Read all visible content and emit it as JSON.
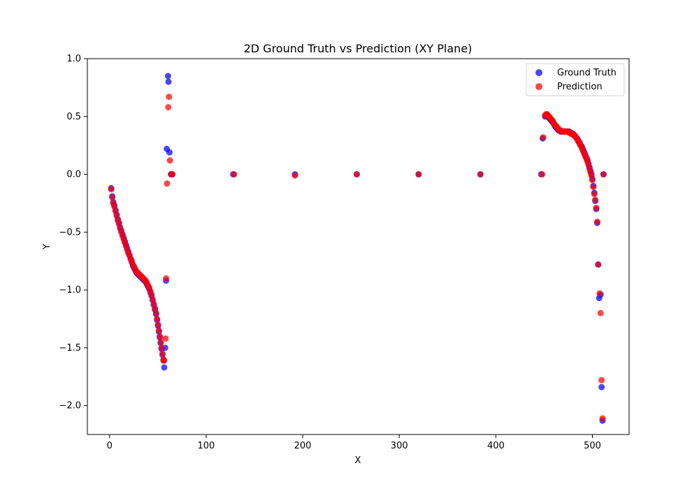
{
  "chart_data": {
    "type": "scatter",
    "title": "2D Ground Truth vs Prediction (XY Plane)",
    "xlabel": "X",
    "ylabel": "Y",
    "xlim": [
      -23,
      538
    ],
    "ylim": [
      -2.25,
      1.0
    ],
    "x_ticks": [
      0,
      100,
      200,
      300,
      400,
      500
    ],
    "y_ticks": [
      1.0,
      0.5,
      0.0,
      -0.5,
      -1.0,
      -1.5,
      -2.0
    ],
    "x_tick_labels": [
      "0",
      "100",
      "200",
      "300",
      "400",
      "500"
    ],
    "y_tick_labels": [
      "1.0",
      "0.5",
      "0.0",
      "−0.5",
      "−1.0",
      "−1.5",
      "−2.0"
    ],
    "grid": false,
    "legend_position": "upper right",
    "series": [
      {
        "name": "Ground Truth",
        "color": "#0000ff",
        "points": [
          [
            1.7,
            -0.12
          ],
          [
            2.8,
            -0.19
          ],
          [
            3.8,
            -0.24
          ],
          [
            5.0,
            -0.27
          ],
          [
            6.2,
            -0.31
          ],
          [
            7.4,
            -0.35
          ],
          [
            8.6,
            -0.39
          ],
          [
            9.8,
            -0.42
          ],
          [
            11.0,
            -0.46
          ],
          [
            12.2,
            -0.49
          ],
          [
            13.4,
            -0.52
          ],
          [
            14.6,
            -0.55
          ],
          [
            15.8,
            -0.58
          ],
          [
            17.0,
            -0.61
          ],
          [
            18.2,
            -0.64
          ],
          [
            19.4,
            -0.67
          ],
          [
            20.6,
            -0.7
          ],
          [
            21.8,
            -0.73
          ],
          [
            23.0,
            -0.76
          ],
          [
            24.2,
            -0.79
          ],
          [
            25.4,
            -0.81
          ],
          [
            26.6,
            -0.83
          ],
          [
            27.8,
            -0.85
          ],
          [
            29.0,
            -0.86
          ],
          [
            30.2,
            -0.87
          ],
          [
            31.4,
            -0.88
          ],
          [
            32.6,
            -0.89
          ],
          [
            33.8,
            -0.9
          ],
          [
            35.0,
            -0.91
          ],
          [
            36.2,
            -0.92
          ],
          [
            37.4,
            -0.93
          ],
          [
            38.6,
            -0.95
          ],
          [
            39.8,
            -0.97
          ],
          [
            41.0,
            -0.99
          ],
          [
            42.2,
            -1.02
          ],
          [
            43.4,
            -1.05
          ],
          [
            44.6,
            -1.09
          ],
          [
            45.8,
            -1.13
          ],
          [
            47.0,
            -1.17
          ],
          [
            48.2,
            -1.21
          ],
          [
            49.2,
            -1.26
          ],
          [
            50.2,
            -1.31
          ],
          [
            51.1,
            -1.36
          ],
          [
            52.0,
            -1.41
          ],
          [
            52.9,
            -1.46
          ],
          [
            53.8,
            -1.51
          ],
          [
            54.8,
            -1.56
          ],
          [
            55.8,
            -1.61
          ],
          [
            56.6,
            -1.67
          ],
          [
            57.6,
            -1.5
          ],
          [
            58.5,
            -0.92
          ],
          [
            59.2,
            0.22
          ],
          [
            60.5,
            0.85
          ],
          [
            61.0,
            0.8
          ],
          [
            62.0,
            0.19
          ],
          [
            63.5,
            0.0
          ],
          [
            65.0,
            0.0
          ],
          [
            128.0,
            0.0
          ],
          [
            192.0,
            0.0
          ],
          [
            256.0,
            0.0
          ],
          [
            320.0,
            0.0
          ],
          [
            384.0,
            0.0
          ],
          [
            447.0,
            0.0
          ],
          [
            448.5,
            0.31
          ],
          [
            451.0,
            0.5
          ],
          [
            452.0,
            0.51
          ],
          [
            453.0,
            0.51
          ],
          [
            454.0,
            0.5
          ],
          [
            455.0,
            0.49
          ],
          [
            456.0,
            0.48
          ],
          [
            457.0,
            0.47
          ],
          [
            458.0,
            0.46
          ],
          [
            459.0,
            0.45
          ],
          [
            460.0,
            0.44
          ],
          [
            461.0,
            0.42
          ],
          [
            462.0,
            0.41
          ],
          [
            463.0,
            0.4
          ],
          [
            464.0,
            0.39
          ],
          [
            465.0,
            0.38
          ],
          [
            466.0,
            0.38
          ],
          [
            467.0,
            0.37
          ],
          [
            468.0,
            0.37
          ],
          [
            469.0,
            0.37
          ],
          [
            470.0,
            0.37
          ],
          [
            471.0,
            0.37
          ],
          [
            472.0,
            0.37
          ],
          [
            473.0,
            0.37
          ],
          [
            474.0,
            0.37
          ],
          [
            475.0,
            0.37
          ],
          [
            476.0,
            0.37
          ],
          [
            477.0,
            0.36
          ],
          [
            478.0,
            0.36
          ],
          [
            479.0,
            0.35
          ],
          [
            480.0,
            0.35
          ],
          [
            481.0,
            0.34
          ],
          [
            482.0,
            0.33
          ],
          [
            483.0,
            0.32
          ],
          [
            484.0,
            0.31
          ],
          [
            485.0,
            0.3
          ],
          [
            486.0,
            0.28
          ],
          [
            487.0,
            0.27
          ],
          [
            488.0,
            0.25
          ],
          [
            489.0,
            0.24
          ],
          [
            490.0,
            0.22
          ],
          [
            491.0,
            0.2
          ],
          [
            492.0,
            0.18
          ],
          [
            493.0,
            0.16
          ],
          [
            494.0,
            0.14
          ],
          [
            495.0,
            0.12
          ],
          [
            496.0,
            0.09
          ],
          [
            497.0,
            0.06
          ],
          [
            498.0,
            0.03
          ],
          [
            499.0,
            0.0
          ],
          [
            500.0,
            -0.04
          ],
          [
            501.0,
            -0.1
          ],
          [
            502.0,
            -0.16
          ],
          [
            503.0,
            -0.23
          ],
          [
            504.0,
            -0.3
          ],
          [
            505.0,
            -0.42
          ],
          [
            506.0,
            -0.78
          ],
          [
            507.0,
            -1.07
          ],
          [
            508.5,
            -1.04
          ],
          [
            509.5,
            -1.84
          ],
          [
            510.5,
            -2.13
          ],
          [
            511.5,
            0.0
          ]
        ]
      },
      {
        "name": "Prediction",
        "color": "#ff0000",
        "points": [
          [
            1.7,
            -0.13
          ],
          [
            2.8,
            -0.2
          ],
          [
            3.8,
            -0.25
          ],
          [
            5.0,
            -0.28
          ],
          [
            6.2,
            -0.32
          ],
          [
            7.4,
            -0.36
          ],
          [
            8.6,
            -0.4
          ],
          [
            9.8,
            -0.43
          ],
          [
            11.0,
            -0.47
          ],
          [
            12.2,
            -0.5
          ],
          [
            13.4,
            -0.53
          ],
          [
            14.6,
            -0.56
          ],
          [
            15.8,
            -0.59
          ],
          [
            17.0,
            -0.62
          ],
          [
            18.2,
            -0.65
          ],
          [
            19.4,
            -0.68
          ],
          [
            20.6,
            -0.7
          ],
          [
            21.8,
            -0.73
          ],
          [
            23.0,
            -0.75
          ],
          [
            24.2,
            -0.78
          ],
          [
            25.4,
            -0.8
          ],
          [
            26.6,
            -0.82
          ],
          [
            27.8,
            -0.84
          ],
          [
            29.0,
            -0.85
          ],
          [
            30.2,
            -0.86
          ],
          [
            31.4,
            -0.87
          ],
          [
            32.6,
            -0.88
          ],
          [
            33.8,
            -0.89
          ],
          [
            35.0,
            -0.9
          ],
          [
            36.2,
            -0.91
          ],
          [
            37.4,
            -0.92
          ],
          [
            38.6,
            -0.94
          ],
          [
            39.8,
            -0.96
          ],
          [
            41.0,
            -0.98
          ],
          [
            42.2,
            -1.01
          ],
          [
            43.4,
            -1.04
          ],
          [
            44.6,
            -1.08
          ],
          [
            45.8,
            -1.12
          ],
          [
            47.0,
            -1.16
          ],
          [
            48.2,
            -1.2
          ],
          [
            49.2,
            -1.25
          ],
          [
            50.2,
            -1.3
          ],
          [
            51.1,
            -1.35
          ],
          [
            52.0,
            -1.4
          ],
          [
            52.9,
            -1.45
          ],
          [
            53.8,
            -1.5
          ],
          [
            54.8,
            -1.55
          ],
          [
            55.8,
            -1.6
          ],
          [
            56.6,
            -1.61
          ],
          [
            58.0,
            -1.42
          ],
          [
            58.5,
            -0.9
          ],
          [
            59.5,
            -0.08
          ],
          [
            60.8,
            0.58
          ],
          [
            61.5,
            0.67
          ],
          [
            62.5,
            0.12
          ],
          [
            64.0,
            0.0
          ],
          [
            65.0,
            0.0
          ],
          [
            129.0,
            0.0
          ],
          [
            192.0,
            -0.01
          ],
          [
            256.0,
            0.0
          ],
          [
            320.0,
            0.0
          ],
          [
            384.0,
            0.0
          ],
          [
            448.0,
            0.0
          ],
          [
            449.0,
            0.32
          ],
          [
            451.0,
            0.51
          ],
          [
            452.0,
            0.52
          ],
          [
            453.0,
            0.52
          ],
          [
            454.0,
            0.51
          ],
          [
            455.0,
            0.5
          ],
          [
            456.0,
            0.49
          ],
          [
            457.0,
            0.48
          ],
          [
            458.0,
            0.47
          ],
          [
            459.0,
            0.46
          ],
          [
            460.0,
            0.44
          ],
          [
            461.0,
            0.43
          ],
          [
            462.0,
            0.42
          ],
          [
            463.0,
            0.41
          ],
          [
            464.0,
            0.4
          ],
          [
            465.0,
            0.39
          ],
          [
            466.0,
            0.38
          ],
          [
            467.0,
            0.38
          ],
          [
            468.0,
            0.37
          ],
          [
            469.0,
            0.37
          ],
          [
            470.0,
            0.37
          ],
          [
            471.0,
            0.37
          ],
          [
            472.0,
            0.37
          ],
          [
            473.0,
            0.37
          ],
          [
            474.0,
            0.37
          ],
          [
            475.0,
            0.37
          ],
          [
            476.0,
            0.36
          ],
          [
            477.0,
            0.36
          ],
          [
            478.0,
            0.35
          ],
          [
            479.0,
            0.35
          ],
          [
            480.0,
            0.34
          ],
          [
            481.0,
            0.34
          ],
          [
            482.0,
            0.33
          ],
          [
            483.0,
            0.32
          ],
          [
            484.0,
            0.31
          ],
          [
            485.0,
            0.29
          ],
          [
            486.0,
            0.28
          ],
          [
            487.0,
            0.26
          ],
          [
            488.0,
            0.25
          ],
          [
            489.0,
            0.23
          ],
          [
            490.0,
            0.21
          ],
          [
            491.0,
            0.19
          ],
          [
            492.0,
            0.17
          ],
          [
            493.0,
            0.15
          ],
          [
            494.0,
            0.13
          ],
          [
            495.0,
            0.11
          ],
          [
            496.0,
            0.08
          ],
          [
            497.0,
            0.05
          ],
          [
            498.0,
            0.02
          ],
          [
            499.0,
            -0.01
          ],
          [
            500.0,
            -0.05
          ],
          [
            501.0,
            -0.11
          ],
          [
            502.0,
            -0.17
          ],
          [
            503.0,
            -0.22
          ],
          [
            504.0,
            -0.29
          ],
          [
            505.0,
            -0.41
          ],
          [
            506.0,
            -0.78
          ],
          [
            507.5,
            -1.03
          ],
          [
            508.5,
            -1.2
          ],
          [
            509.5,
            -1.78
          ],
          [
            510.5,
            -2.11
          ],
          [
            511.5,
            0.0
          ]
        ]
      }
    ]
  }
}
